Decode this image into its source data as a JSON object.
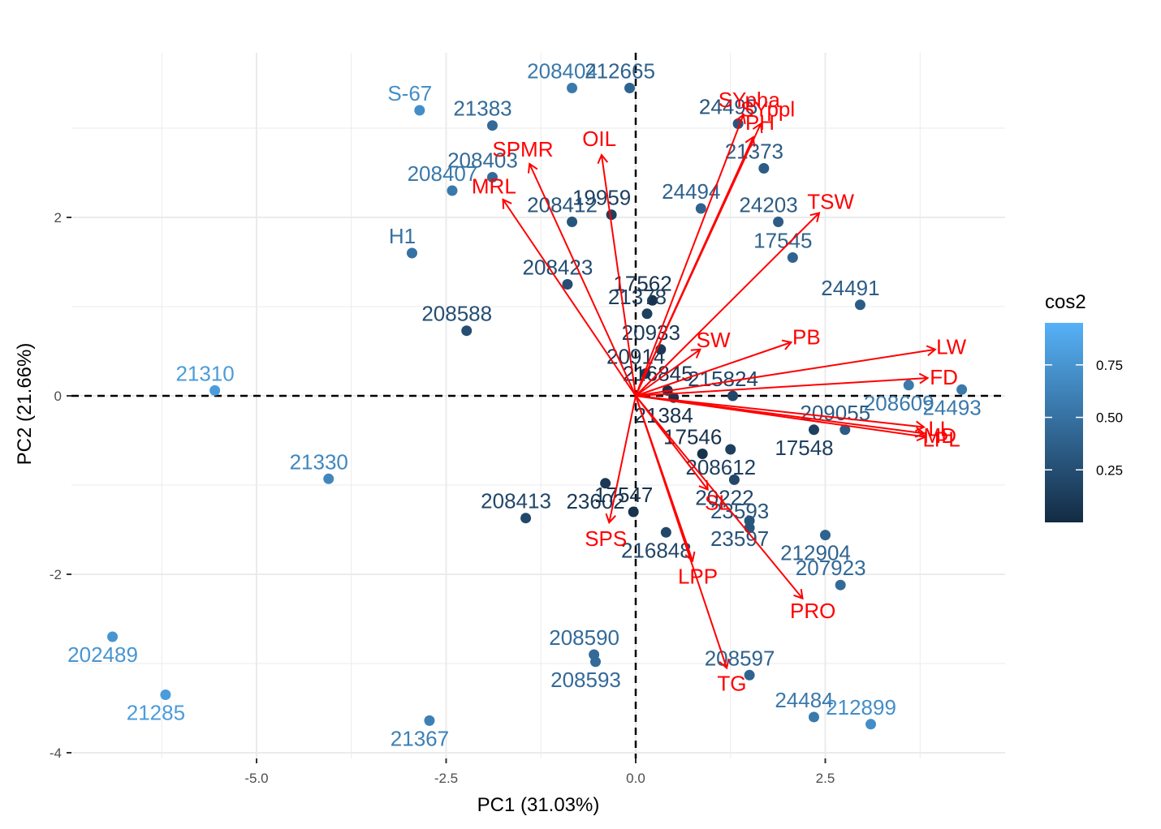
{
  "chart_data": {
    "type": "scatter",
    "subtype": "pca-biplot",
    "xlabel": "PC1 (31.03%)",
    "ylabel": "PC2 (21.66%)",
    "xlim": [
      -6.95,
      4.9
    ],
    "ylim": [
      -4.3,
      3.8
    ],
    "x_ticks": [
      {
        "v": -5.0,
        "label": "-5.0"
      },
      {
        "v": -2.5,
        "label": "-2.5"
      },
      {
        "v": 0.0,
        "label": "0.0"
      },
      {
        "v": 2.5,
        "label": "2.5"
      }
    ],
    "y_ticks": [
      {
        "v": 2,
        "label": "2"
      },
      {
        "v": 0,
        "label": "0"
      },
      {
        "v": -2,
        "label": "-2"
      },
      {
        "v": -4,
        "label": "-4"
      }
    ],
    "grid": true,
    "reference_lines": {
      "x": 0,
      "y": 0,
      "style": "dashed"
    },
    "legend": {
      "title": "cos2",
      "position": "right",
      "ticks": [
        0.75,
        0.5,
        0.25
      ],
      "range": [
        0.0,
        0.95
      ]
    },
    "colors": {
      "low": "#132b43",
      "high": "#56b1f7",
      "arrows": "#ff0000",
      "grid": "#ebebeb"
    },
    "points": [
      {
        "label": "208404",
        "x": -0.84,
        "y": 3.45,
        "cos2": 0.55
      },
      {
        "label": "212665",
        "x": -0.08,
        "y": 3.45,
        "cos2": 0.4
      },
      {
        "label": "S-67",
        "x": -2.85,
        "y": 3.2,
        "cos2": 0.7
      },
      {
        "label": "21383",
        "x": -1.89,
        "y": 3.03,
        "cos2": 0.45
      },
      {
        "label": "24495",
        "x": 1.35,
        "y": 3.05,
        "cos2": 0.3
      },
      {
        "label": "21373",
        "x": 1.69,
        "y": 2.55,
        "cos2": 0.35
      },
      {
        "label": "24494",
        "x": 0.86,
        "y": 2.1,
        "cos2": 0.4
      },
      {
        "label": "208403",
        "x": -1.89,
        "y": 2.45,
        "cos2": 0.45
      },
      {
        "label": "208407",
        "x": -2.42,
        "y": 2.3,
        "cos2": 0.55
      },
      {
        "label": "19959",
        "x": -0.32,
        "y": 2.03,
        "cos2": 0.15
      },
      {
        "label": "208412",
        "x": -0.84,
        "y": 1.95,
        "cos2": 0.3
      },
      {
        "label": "24203",
        "x": 1.88,
        "y": 1.95,
        "cos2": 0.35
      },
      {
        "label": "H1",
        "x": -2.95,
        "y": 1.6,
        "cos2": 0.5
      },
      {
        "label": "17545",
        "x": 2.07,
        "y": 1.55,
        "cos2": 0.4
      },
      {
        "label": "208423",
        "x": -0.9,
        "y": 1.25,
        "cos2": 0.25
      },
      {
        "label": "17562",
        "x": 0.22,
        "y": 1.07,
        "cos2": 0.05
      },
      {
        "label": "24491",
        "x": 2.96,
        "y": 1.02,
        "cos2": 0.35
      },
      {
        "label": "21378",
        "x": 0.15,
        "y": 0.92,
        "cos2": 0.15
      },
      {
        "label": "208588",
        "x": -2.23,
        "y": 0.73,
        "cos2": 0.25
      },
      {
        "label": "20933",
        "x": 0.33,
        "y": 0.52,
        "cos2": 0.1
      },
      {
        "label": "20914",
        "x": 0.13,
        "y": 0.25,
        "cos2": 0.1
      },
      {
        "label": "208609",
        "x": 3.6,
        "y": 0.12,
        "cos2": 0.55
      },
      {
        "label": "21310",
        "x": -5.55,
        "y": 0.06,
        "cos2": 0.8
      },
      {
        "label": "24493",
        "x": 4.3,
        "y": 0.07,
        "cos2": 0.55
      },
      {
        "label": "216845",
        "x": 0.42,
        "y": 0.06,
        "cos2": 0.05
      },
      {
        "label": "21384",
        "x": 0.5,
        "y": -0.02,
        "cos2": 0.05
      },
      {
        "label": "215824",
        "x": 1.28,
        "y": 0.0,
        "cos2": 0.2
      },
      {
        "label": "17548",
        "x": 2.35,
        "y": -0.38,
        "cos2": 0.15
      },
      {
        "label": "209055",
        "x": 2.76,
        "y": -0.38,
        "cos2": 0.35
      },
      {
        "label": "208612",
        "x": 1.25,
        "y": -0.6,
        "cos2": 0.15
      },
      {
        "label": "17546",
        "x": 0.88,
        "y": -0.65,
        "cos2": 0.05
      },
      {
        "label": "20222",
        "x": 1.3,
        "y": -0.94,
        "cos2": 0.2
      },
      {
        "label": "21330",
        "x": -4.05,
        "y": -0.93,
        "cos2": 0.65
      },
      {
        "label": "23602",
        "x": -0.4,
        "y": -0.98,
        "cos2": 0.1
      },
      {
        "label": "17547",
        "x": -0.03,
        "y": -1.3,
        "cos2": 0.05
      },
      {
        "label": "23597",
        "x": 1.5,
        "y": -1.4,
        "cos2": 0.3
      },
      {
        "label": "208413",
        "x": -1.45,
        "y": -1.37,
        "cos2": 0.2
      },
      {
        "label": "216848",
        "x": 0.4,
        "y": -1.53,
        "cos2": 0.2
      },
      {
        "label": "23593",
        "x": 1.5,
        "y": -1.48,
        "cos2": 0.3
      },
      {
        "label": "212904",
        "x": 2.5,
        "y": -1.56,
        "cos2": 0.4
      },
      {
        "label": "207923",
        "x": 2.7,
        "y": -2.12,
        "cos2": 0.45
      },
      {
        "label": "202489",
        "x": -6.9,
        "y": -2.7,
        "cos2": 0.75
      },
      {
        "label": "208590",
        "x": -0.55,
        "y": -2.9,
        "cos2": 0.45
      },
      {
        "label": "208593",
        "x": -0.53,
        "y": -2.98,
        "cos2": 0.45
      },
      {
        "label": "208597",
        "x": 1.5,
        "y": -3.13,
        "cos2": 0.4
      },
      {
        "label": "21285",
        "x": -6.2,
        "y": -3.35,
        "cos2": 0.8
      },
      {
        "label": "24484",
        "x": 2.35,
        "y": -3.6,
        "cos2": 0.55
      },
      {
        "label": "21367",
        "x": -2.72,
        "y": -3.64,
        "cos2": 0.6
      },
      {
        "label": "212899",
        "x": 3.1,
        "y": -3.68,
        "cos2": 0.7
      }
    ],
    "variables": [
      {
        "label": "SYpha",
        "x": 1.42,
        "y": 3.15
      },
      {
        "label": "SYppl",
        "x": 1.65,
        "y": 3.05
      },
      {
        "label": "PH",
        "x": 1.55,
        "y": 2.9
      },
      {
        "label": "OIL",
        "x": -0.45,
        "y": 2.7
      },
      {
        "label": "SPMR",
        "x": -1.4,
        "y": 2.6
      },
      {
        "label": "MRL",
        "x": -1.75,
        "y": 2.2
      },
      {
        "label": "TSW",
        "x": 2.42,
        "y": 2.05
      },
      {
        "label": "SW",
        "x": 0.85,
        "y": 0.52
      },
      {
        "label": "PB",
        "x": 2.05,
        "y": 0.6
      },
      {
        "label": "LW",
        "x": 3.95,
        "y": 0.52
      },
      {
        "label": "FD",
        "x": 3.85,
        "y": 0.2
      },
      {
        "label": "LL",
        "x": 3.8,
        "y": -0.35
      },
      {
        "label": "MD",
        "x": 3.8,
        "y": -0.42
      },
      {
        "label": "LPL",
        "x": 3.82,
        "y": -0.46
      },
      {
        "label": "SL",
        "x": 0.95,
        "y": -1.05
      },
      {
        "label": "SPS",
        "x": -0.35,
        "y": -1.42
      },
      {
        "label": "LPP",
        "x": 0.75,
        "y": -1.85
      },
      {
        "label": "PRO",
        "x": 2.2,
        "y": -2.27
      },
      {
        "label": "TG",
        "x": 1.2,
        "y": -3.05
      }
    ]
  }
}
